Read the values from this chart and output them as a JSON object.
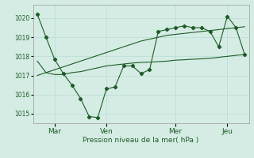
{
  "background_color": "#d5ece4",
  "grid_color": "#b8ddd4",
  "line_color": "#1e5c28",
  "title": "Pression niveau de la mer( hPa )",
  "ylim": [
    1014.5,
    1020.7
  ],
  "yticks": [
    1015,
    1016,
    1017,
    1018,
    1019,
    1020
  ],
  "xtick_labels": [
    "Mar",
    "Ven",
    "Mer",
    "Jeu"
  ],
  "xtick_positions": [
    2,
    8,
    16,
    22
  ],
  "n_points": 25,
  "series_main": [
    1020.2,
    1019.0,
    1017.85,
    1017.1,
    1016.5,
    1015.8,
    1014.85,
    1014.8,
    1016.3,
    1016.4,
    1017.5,
    1017.5,
    1017.1,
    1017.3,
    1019.3,
    1019.4,
    1019.5,
    1019.6,
    1019.5,
    1019.5,
    1019.3,
    1018.5,
    1020.1,
    1019.5,
    1018.1
  ],
  "series_smooth": [
    1017.75,
    1017.15,
    1017.05,
    1017.05,
    1017.15,
    1017.2,
    1017.3,
    1017.4,
    1017.5,
    1017.55,
    1017.6,
    1017.65,
    1017.68,
    1017.7,
    1017.72,
    1017.75,
    1017.8,
    1017.82,
    1017.85,
    1017.87,
    1017.9,
    1017.95,
    1018.0,
    1018.05,
    1018.1
  ],
  "series_trend": [
    1017.0,
    1017.15,
    1017.3,
    1017.45,
    1017.6,
    1017.75,
    1017.9,
    1018.05,
    1018.2,
    1018.35,
    1018.5,
    1018.65,
    1018.8,
    1018.9,
    1019.0,
    1019.1,
    1019.15,
    1019.2,
    1019.25,
    1019.3,
    1019.35,
    1019.4,
    1019.45,
    1019.5,
    1019.55
  ]
}
